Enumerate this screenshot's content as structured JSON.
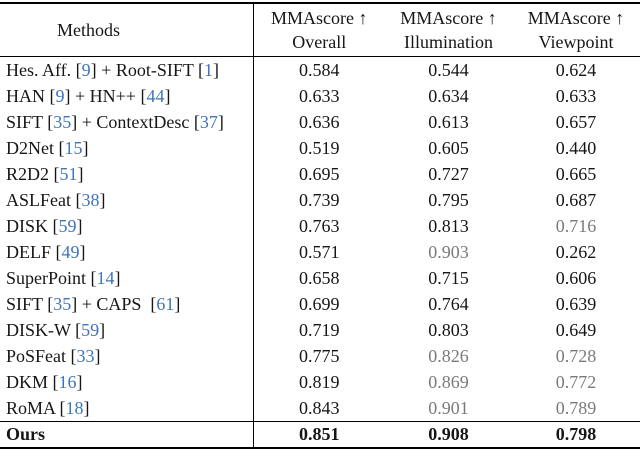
{
  "colors": {
    "text": "#161616",
    "citation_blue": "#3e74bb",
    "light_value": "#7a7a7a",
    "rule": "#000000"
  },
  "table": {
    "header": {
      "methods_label": "Methods",
      "score_columns": [
        {
          "line1": "MMAscore ↑",
          "line2": "Overall"
        },
        {
          "line1": "MMAscore ↑",
          "line2": "Illumination"
        },
        {
          "line1": "MMAscore ↑",
          "line2": "Viewpoint"
        }
      ]
    },
    "rows": [
      {
        "method": [
          {
            "t": "Hes. Aff. "
          },
          {
            "cite": "9"
          },
          {
            "t": " + Root-SIFT "
          },
          {
            "cite": "1"
          }
        ],
        "values": [
          {
            "v": "0.584"
          },
          {
            "v": "0.544"
          },
          {
            "v": "0.624"
          }
        ]
      },
      {
        "method": [
          {
            "t": "HAN "
          },
          {
            "cite": "9"
          },
          {
            "t": " + HN++ "
          },
          {
            "cite": "44"
          }
        ],
        "values": [
          {
            "v": "0.633"
          },
          {
            "v": "0.634"
          },
          {
            "v": "0.633"
          }
        ]
      },
      {
        "method": [
          {
            "t": "SIFT "
          },
          {
            "cite": "35"
          },
          {
            "t": " + ContextDesc "
          },
          {
            "cite": "37"
          }
        ],
        "values": [
          {
            "v": "0.636"
          },
          {
            "v": "0.613"
          },
          {
            "v": "0.657"
          }
        ]
      },
      {
        "method": [
          {
            "t": "D2Net "
          },
          {
            "cite": "15"
          }
        ],
        "values": [
          {
            "v": "0.519"
          },
          {
            "v": "0.605"
          },
          {
            "v": "0.440"
          }
        ]
      },
      {
        "method": [
          {
            "t": "R2D2 "
          },
          {
            "cite": "51"
          }
        ],
        "values": [
          {
            "v": "0.695"
          },
          {
            "v": "0.727"
          },
          {
            "v": "0.665"
          }
        ]
      },
      {
        "method": [
          {
            "t": "ASLFeat "
          },
          {
            "cite": "38"
          }
        ],
        "values": [
          {
            "v": "0.739"
          },
          {
            "v": "0.795"
          },
          {
            "v": "0.687"
          }
        ]
      },
      {
        "method": [
          {
            "t": "DISK "
          },
          {
            "cite": "59"
          }
        ],
        "values": [
          {
            "v": "0.763"
          },
          {
            "v": "0.813"
          },
          {
            "v": "0.716",
            "light": true
          }
        ]
      },
      {
        "method": [
          {
            "t": "DELF "
          },
          {
            "cite": "49"
          }
        ],
        "values": [
          {
            "v": "0.571"
          },
          {
            "v": "0.903",
            "light": true
          },
          {
            "v": "0.262"
          }
        ]
      },
      {
        "method": [
          {
            "t": "SuperPoint "
          },
          {
            "cite": "14"
          }
        ],
        "values": [
          {
            "v": "0.658"
          },
          {
            "v": "0.715"
          },
          {
            "v": "0.606"
          }
        ]
      },
      {
        "method": [
          {
            "t": "SIFT "
          },
          {
            "cite": "35"
          },
          {
            "t": " + CAPS  "
          },
          {
            "cite": "61"
          }
        ],
        "values": [
          {
            "v": "0.699"
          },
          {
            "v": "0.764"
          },
          {
            "v": "0.639"
          }
        ]
      },
      {
        "method": [
          {
            "t": "DISK-W "
          },
          {
            "cite": "59"
          }
        ],
        "values": [
          {
            "v": "0.719"
          },
          {
            "v": "0.803"
          },
          {
            "v": "0.649"
          }
        ]
      },
      {
        "method": [
          {
            "t": "PoSFeat "
          },
          {
            "cite": "33"
          }
        ],
        "values": [
          {
            "v": "0.775"
          },
          {
            "v": "0.826",
            "light": true
          },
          {
            "v": "0.728",
            "light": true
          }
        ]
      },
      {
        "method": [
          {
            "t": "DKM "
          },
          {
            "cite": "16"
          }
        ],
        "values": [
          {
            "v": "0.819"
          },
          {
            "v": "0.869",
            "light": true
          },
          {
            "v": "0.772",
            "light": true
          }
        ]
      },
      {
        "method": [
          {
            "t": "RoMA "
          },
          {
            "cite": "18"
          }
        ],
        "values": [
          {
            "v": "0.843"
          },
          {
            "v": "0.901",
            "light": true
          },
          {
            "v": "0.789",
            "light": true
          }
        ]
      },
      {
        "method": [
          {
            "t": "Ours"
          }
        ],
        "bold": true,
        "values": [
          {
            "v": "0.851"
          },
          {
            "v": "0.908"
          },
          {
            "v": "0.798"
          }
        ]
      }
    ]
  }
}
